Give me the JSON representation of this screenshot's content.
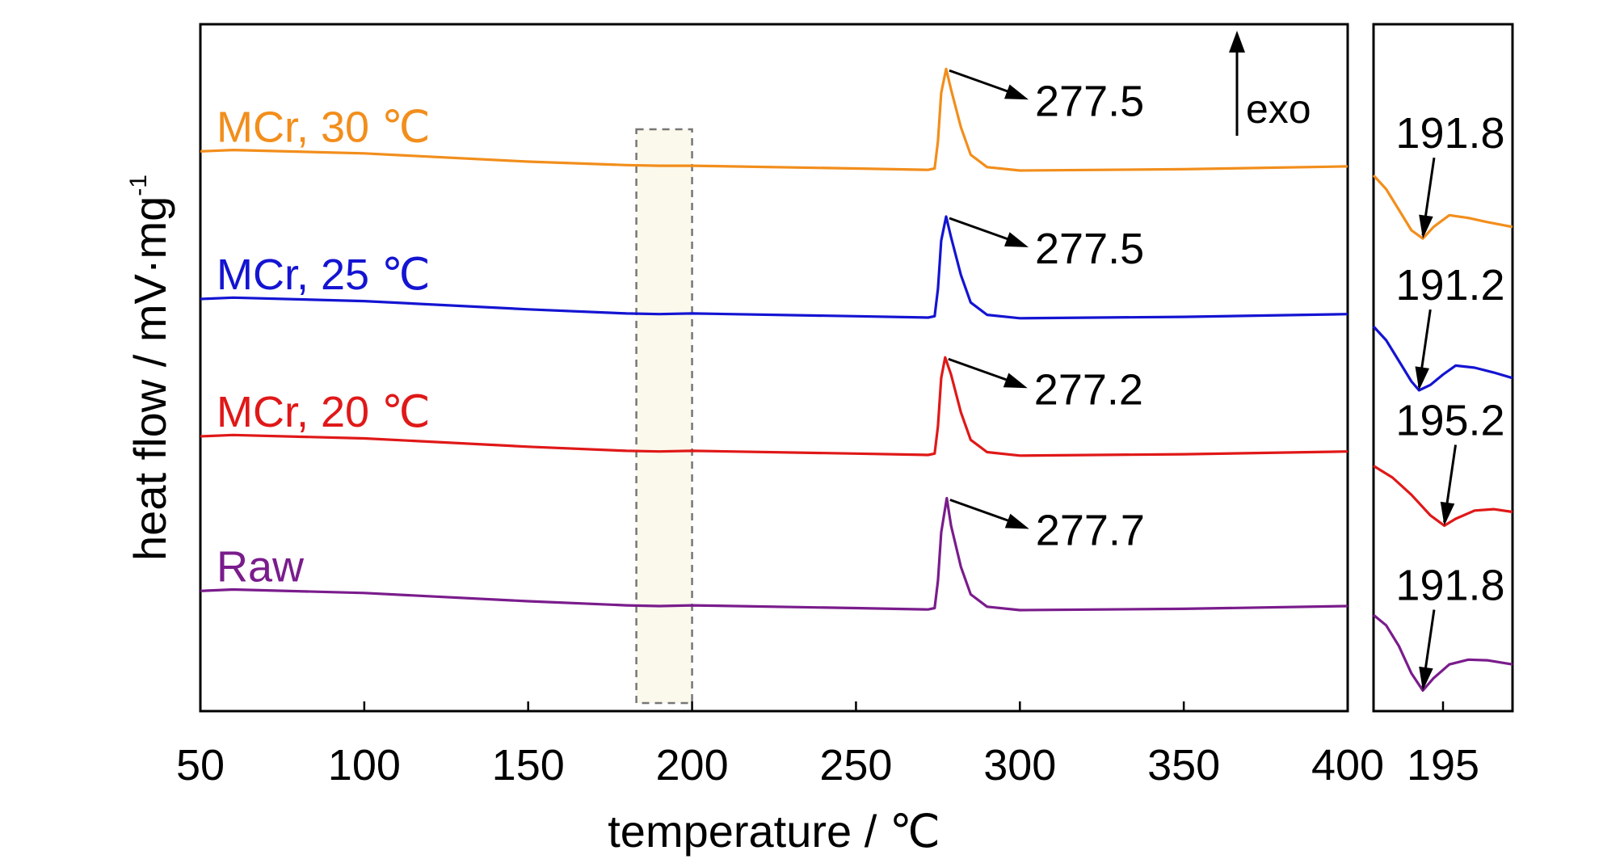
{
  "chart_data": [
    {
      "type": "line",
      "xlabel": "temperature / ℃",
      "ylabel": "heat flow / mV·mg",
      "ylabel_sup": "-1",
      "xlim": [
        50,
        400
      ],
      "xticks": [
        50,
        100,
        150,
        200,
        250,
        300,
        350,
        400
      ],
      "yticks": "none",
      "grid": false,
      "annotation_exo": "exo",
      "highlight_range": [
        183,
        200
      ],
      "series": [
        {
          "name": "MCr, 30 ℃",
          "color": "#F28E1C",
          "peak_label": "277.5",
          "points": [
            [
              50,
              0.815
            ],
            [
              60,
              0.817
            ],
            [
              100,
              0.812
            ],
            [
              150,
              0.8
            ],
            [
              180,
              0.795
            ],
            [
              190,
              0.794
            ],
            [
              200,
              0.794
            ],
            [
              250,
              0.79
            ],
            [
              272,
              0.788
            ],
            [
              274,
              0.79
            ],
            [
              275,
              0.83
            ],
            [
              276,
              0.9
            ],
            [
              277.5,
              0.935
            ],
            [
              279,
              0.905
            ],
            [
              282,
              0.85
            ],
            [
              285,
              0.81
            ],
            [
              290,
              0.792
            ],
            [
              300,
              0.787
            ],
            [
              350,
              0.789
            ],
            [
              400,
              0.793
            ]
          ]
        },
        {
          "name": "MCr, 25 ℃",
          "color": "#1414D2",
          "peak_label": "277.5",
          "points": [
            [
              50,
              0.6
            ],
            [
              60,
              0.602
            ],
            [
              100,
              0.597
            ],
            [
              150,
              0.585
            ],
            [
              180,
              0.579
            ],
            [
              190,
              0.578
            ],
            [
              200,
              0.579
            ],
            [
              250,
              0.575
            ],
            [
              272,
              0.573
            ],
            [
              274,
              0.575
            ],
            [
              275,
              0.615
            ],
            [
              276,
              0.685
            ],
            [
              277.5,
              0.72
            ],
            [
              279,
              0.69
            ],
            [
              282,
              0.635
            ],
            [
              285,
              0.595
            ],
            [
              290,
              0.577
            ],
            [
              300,
              0.572
            ],
            [
              350,
              0.574
            ],
            [
              400,
              0.578
            ]
          ]
        },
        {
          "name": "MCr, 20 ℃",
          "color": "#E01818",
          "peak_label": "277.2",
          "points": [
            [
              50,
              0.4
            ],
            [
              60,
              0.402
            ],
            [
              100,
              0.397
            ],
            [
              150,
              0.385
            ],
            [
              180,
              0.379
            ],
            [
              190,
              0.378
            ],
            [
              200,
              0.379
            ],
            [
              250,
              0.375
            ],
            [
              272,
              0.373
            ],
            [
              274,
              0.375
            ],
            [
              275,
              0.415
            ],
            [
              276,
              0.485
            ],
            [
              277.2,
              0.515
            ],
            [
              279,
              0.49
            ],
            [
              282,
              0.435
            ],
            [
              285,
              0.395
            ],
            [
              290,
              0.377
            ],
            [
              300,
              0.372
            ],
            [
              350,
              0.374
            ],
            [
              400,
              0.378
            ]
          ]
        },
        {
          "name": "Raw",
          "color": "#7A1C8C",
          "peak_label": "277.7",
          "points": [
            [
              50,
              0.175
            ],
            [
              60,
              0.177
            ],
            [
              100,
              0.172
            ],
            [
              150,
              0.16
            ],
            [
              180,
              0.154
            ],
            [
              190,
              0.153
            ],
            [
              200,
              0.154
            ],
            [
              250,
              0.15
            ],
            [
              272,
              0.148
            ],
            [
              274,
              0.15
            ],
            [
              275,
              0.19
            ],
            [
              276,
              0.26
            ],
            [
              277.7,
              0.31
            ],
            [
              279,
              0.27
            ],
            [
              282,
              0.21
            ],
            [
              285,
              0.17
            ],
            [
              290,
              0.152
            ],
            [
              300,
              0.147
            ],
            [
              350,
              0.149
            ],
            [
              400,
              0.153
            ]
          ]
        }
      ]
    },
    {
      "type": "line",
      "xticks": [
        195
      ],
      "xlim": [
        184,
        206
      ],
      "grid": false,
      "series": [
        {
          "color": "#F28E1C",
          "min_label": "191.8",
          "min_x": 191.8,
          "points": [
            [
              184,
              0.78
            ],
            [
              186,
              0.76
            ],
            [
              188,
              0.73
            ],
            [
              190,
              0.7
            ],
            [
              191.8,
              0.688
            ],
            [
              193.5,
              0.705
            ],
            [
              196,
              0.722
            ],
            [
              199,
              0.718
            ],
            [
              202,
              0.712
            ],
            [
              206,
              0.705
            ]
          ]
        },
        {
          "color": "#1414D2",
          "min_label": "191.2",
          "min_x": 191.2,
          "points": [
            [
              184,
              0.56
            ],
            [
              186,
              0.54
            ],
            [
              188,
              0.51
            ],
            [
              190,
              0.48
            ],
            [
              191.2,
              0.467
            ],
            [
              193,
              0.475
            ],
            [
              195,
              0.49
            ],
            [
              197,
              0.503
            ],
            [
              200,
              0.5
            ],
            [
              203,
              0.493
            ],
            [
              206,
              0.485
            ]
          ]
        },
        {
          "color": "#E01818",
          "min_label": "195.2",
          "min_x": 195.2,
          "points": [
            [
              184,
              0.357
            ],
            [
              187,
              0.34
            ],
            [
              190,
              0.315
            ],
            [
              193,
              0.285
            ],
            [
              195.2,
              0.27
            ],
            [
              197,
              0.28
            ],
            [
              200,
              0.292
            ],
            [
              203,
              0.294
            ],
            [
              206,
              0.29
            ]
          ]
        },
        {
          "color": "#7A1C8C",
          "min_label": "191.8",
          "min_x": 191.8,
          "points": [
            [
              184,
              0.14
            ],
            [
              186,
              0.125
            ],
            [
              188,
              0.095
            ],
            [
              190,
              0.055
            ],
            [
              191.8,
              0.03
            ],
            [
              193.5,
              0.048
            ],
            [
              196,
              0.068
            ],
            [
              199,
              0.075
            ],
            [
              202,
              0.074
            ],
            [
              206,
              0.068
            ]
          ]
        }
      ]
    }
  ]
}
